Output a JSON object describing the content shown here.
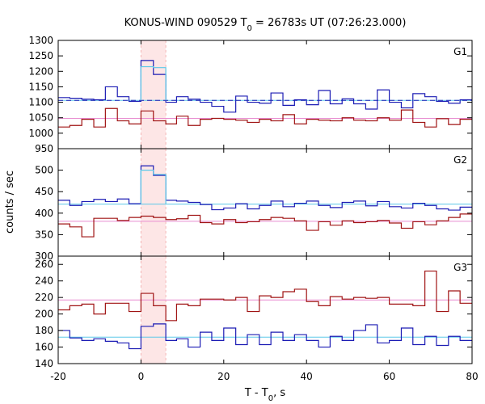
{
  "chart_data": {
    "type": "line",
    "title": {
      "pre": "KONUS-WIND 090529 T",
      "sub": "0",
      "post": " = 26783s UT (07:26:23.000)"
    },
    "xlabel": {
      "pre": "T - T",
      "sub": "0",
      "post": ", s"
    },
    "ylabel": "counts / sec",
    "xlim": [
      -20,
      80
    ],
    "xticks": [
      -20,
      0,
      20,
      40,
      60,
      80
    ],
    "highlight_interval": [
      0,
      6
    ],
    "colors": {
      "blue": "#1c1cb4",
      "red": "#a01414",
      "cyan": "#5cc8e8",
      "pink": "#e88cd0",
      "blue_baseline": "#1c1cb4",
      "highlight": "#fde6e6"
    },
    "panels": [
      {
        "label": "G1",
        "ylim": [
          950,
          1300
        ],
        "yticks": [
          950,
          1000,
          1050,
          1100,
          1150,
          1200,
          1250,
          1300
        ],
        "blue": {
          "edges": [
            -20,
            -17.2,
            -14.3,
            -11.4,
            -8.6,
            -5.7,
            -2.9,
            0,
            3,
            6,
            8.6,
            11.4,
            14.3,
            17.1,
            20,
            22.9,
            25.7,
            28.6,
            31.4,
            34.3,
            37.1,
            40,
            42.9,
            45.7,
            48.6,
            51.4,
            54.3,
            57.1,
            60,
            62.9,
            65.7,
            68.6,
            71.4,
            74.3,
            77.1,
            80
          ],
          "values": [
            1115,
            1113,
            1110,
            1108,
            1150,
            1118,
            1103,
            1235,
            1190,
            1100,
            1118,
            1110,
            1100,
            1087,
            1068,
            1120,
            1100,
            1097,
            1130,
            1090,
            1108,
            1092,
            1138,
            1095,
            1111,
            1095,
            1078,
            1140,
            1100,
            1082,
            1128,
            1118,
            1103,
            1097,
            1108
          ]
        },
        "red": {
          "edges": [
            -20,
            -17.2,
            -14.3,
            -11.4,
            -8.6,
            -5.7,
            -2.9,
            0,
            3,
            6,
            8.6,
            11.4,
            14.3,
            17.1,
            20,
            22.9,
            25.7,
            28.6,
            31.4,
            34.3,
            37.1,
            40,
            42.9,
            45.7,
            48.6,
            51.4,
            54.3,
            57.1,
            60,
            62.9,
            65.7,
            68.6,
            71.4,
            74.3,
            77.1,
            80
          ],
          "values": [
            1020,
            1025,
            1045,
            1020,
            1080,
            1040,
            1030,
            1072,
            1040,
            1030,
            1055,
            1025,
            1045,
            1048,
            1045,
            1042,
            1035,
            1045,
            1040,
            1060,
            1030,
            1045,
            1042,
            1040,
            1050,
            1042,
            1040,
            1050,
            1042,
            1075,
            1035,
            1020,
            1047,
            1028,
            1045
          ]
        },
        "cyan": {
          "edges": [
            0,
            3,
            6
          ],
          "values": [
            1215,
            1212
          ]
        },
        "blue_baseline": 1106,
        "cyan_baseline": 1106,
        "pink_baseline": 1048
      },
      {
        "label": "G2",
        "ylim": [
          300,
          550
        ],
        "yticks": [
          300,
          350,
          400,
          450,
          500
        ],
        "blue": {
          "edges": [
            -20,
            -17.2,
            -14.3,
            -11.4,
            -8.6,
            -5.7,
            -2.9,
            0,
            3,
            6,
            8.6,
            11.4,
            14.3,
            17.1,
            20,
            22.9,
            25.7,
            28.6,
            31.4,
            34.3,
            37.1,
            40,
            42.9,
            45.7,
            48.6,
            51.4,
            54.3,
            57.1,
            60,
            62.9,
            65.7,
            68.6,
            71.4,
            74.3,
            77.1,
            80
          ],
          "values": [
            430,
            418,
            427,
            432,
            427,
            433,
            422,
            510,
            488,
            430,
            428,
            425,
            420,
            408,
            412,
            422,
            410,
            418,
            428,
            415,
            423,
            428,
            418,
            413,
            425,
            428,
            417,
            427,
            415,
            412,
            423,
            418,
            410,
            407,
            414
          ]
        },
        "red": {
          "edges": [
            -20,
            -17.2,
            -14.3,
            -11.4,
            -8.6,
            -5.7,
            -2.9,
            0,
            3,
            6,
            8.6,
            11.4,
            14.3,
            17.1,
            20,
            22.9,
            25.7,
            28.6,
            31.4,
            34.3,
            37.1,
            40,
            42.9,
            45.7,
            48.6,
            51.4,
            54.3,
            57.1,
            60,
            62.9,
            65.7,
            68.6,
            71.4,
            74.3,
            77.1,
            80
          ],
          "values": [
            375,
            368,
            345,
            388,
            388,
            383,
            390,
            393,
            390,
            385,
            387,
            395,
            378,
            375,
            385,
            378,
            380,
            385,
            390,
            388,
            382,
            360,
            380,
            372,
            382,
            378,
            380,
            383,
            377,
            365,
            380,
            373,
            382,
            390,
            398
          ]
        },
        "cyan": {
          "edges": [
            0,
            3,
            6
          ],
          "values": [
            500,
            490
          ]
        },
        "cyan_baseline": 421,
        "pink_baseline": 381
      },
      {
        "label": "G3",
        "ylim": [
          140,
          270
        ],
        "yticks": [
          140,
          160,
          180,
          200,
          220,
          240,
          260
        ],
        "blue": {
          "edges": [
            -20,
            -17.2,
            -14.3,
            -11.4,
            -8.6,
            -5.7,
            -2.9,
            0,
            3,
            6,
            8.6,
            11.4,
            14.3,
            17.1,
            20,
            22.9,
            25.7,
            28.6,
            31.4,
            34.3,
            37.1,
            40,
            42.9,
            45.7,
            48.6,
            51.4,
            54.3,
            57.1,
            60,
            62.9,
            65.7,
            68.6,
            71.4,
            74.3,
            77.1,
            80
          ],
          "values": [
            180,
            171,
            168,
            170,
            167,
            165,
            158,
            185,
            188,
            168,
            170,
            160,
            178,
            168,
            183,
            163,
            175,
            163,
            178,
            168,
            175,
            168,
            160,
            173,
            168,
            180,
            187,
            165,
            168,
            183,
            163,
            173,
            162,
            173,
            168
          ]
        },
        "red": {
          "edges": [
            -20,
            -17.2,
            -14.3,
            -11.4,
            -8.6,
            -5.7,
            -2.9,
            0,
            3,
            6,
            8.6,
            11.4,
            14.3,
            17.1,
            20,
            22.9,
            25.7,
            28.6,
            31.4,
            34.3,
            37.1,
            40,
            42.9,
            45.7,
            48.6,
            51.4,
            54.3,
            57.1,
            60,
            62.9,
            65.7,
            68.6,
            71.4,
            74.3,
            77.1,
            80
          ],
          "values": [
            205,
            210,
            212,
            200,
            213,
            213,
            203,
            225,
            210,
            192,
            212,
            210,
            218,
            218,
            217,
            220,
            203,
            222,
            220,
            227,
            230,
            215,
            210,
            221,
            218,
            220,
            219,
            220,
            212,
            212,
            210,
            252,
            203,
            228,
            213
          ]
        },
        "blue_baseline": 172,
        "pink_baseline": 217
      }
    ]
  }
}
